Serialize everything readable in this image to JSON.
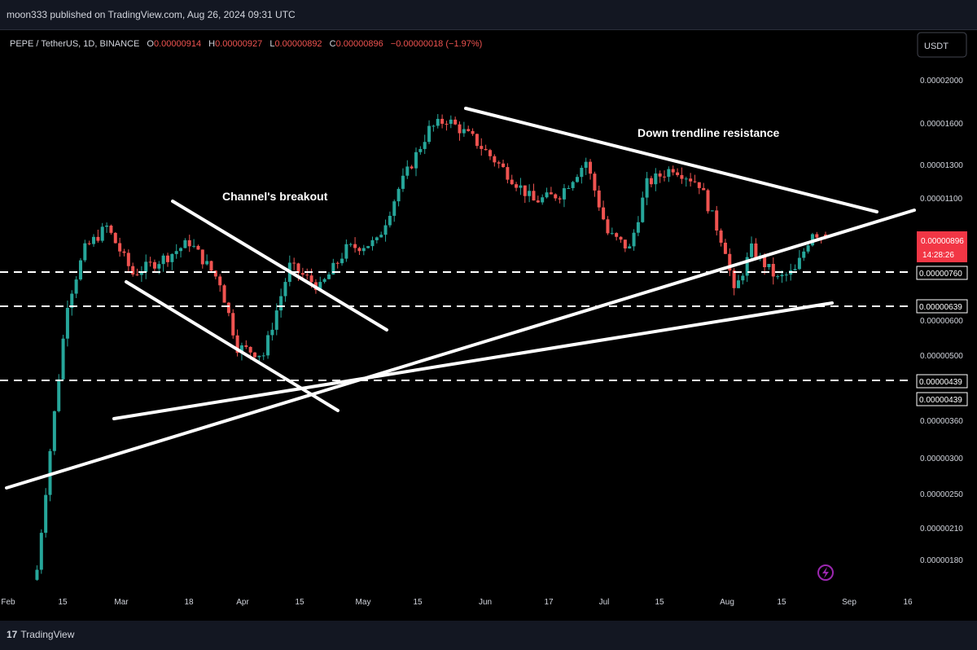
{
  "header": {
    "publish_text": "moon333 published on TradingView.com, Aug 26, 2024 09:31 UTC"
  },
  "legend": {
    "symbol": "PEPE / TetherUS, 1D, BINANCE",
    "open_label": "O",
    "open": "0.00000914",
    "high_label": "H",
    "high": "0.00000927",
    "low_label": "L",
    "low": "0.00000892",
    "close_label": "C",
    "close": "0.00000896",
    "change": "−0.00000018 (−1.97%)"
  },
  "currency_button": "USDT",
  "price_labels": [
    "0.00002000",
    "0.00001600",
    "0.00001300",
    "0.00001100",
    "0.00000600",
    "0.00000500",
    "0.00000360",
    "0.00000300",
    "0.00000250",
    "0.00000210",
    "0.00000180"
  ],
  "level_labels": [
    "0.00000760",
    "0.00000639",
    "0.00000439",
    "0.00000439"
  ],
  "current_price": {
    "price": "0.00000896",
    "countdown": "14:28:26"
  },
  "date_labels": [
    "Feb",
    "15",
    "Mar",
    "18",
    "Apr",
    "15",
    "May",
    "15",
    "Jun",
    "17",
    "Jul",
    "15",
    "Aug",
    "15",
    "Sep",
    "16"
  ],
  "annotations": [
    "Channel's breakout",
    "Down trendline resistance"
  ],
  "footer": {
    "brand": "TradingView"
  },
  "colors": {
    "up": "#26a69a",
    "down": "#ef5350",
    "background": "#000000",
    "current_price_bg": "#f23645",
    "lines": "#ffffff"
  },
  "chart_data": {
    "type": "candlestick",
    "title": "PEPE / TetherUS, 1D, BINANCE",
    "scale": "log",
    "ylim": [
      1.6e-06,
      2.5e-06
    ],
    "xlabel": "",
    "ylabel": "",
    "date_range": [
      "2024-02-20",
      "2024-08-26"
    ],
    "last_ohlc": {
      "open": 9.14e-06,
      "high": 9.27e-06,
      "low": 8.92e-06,
      "close": 8.96e-06
    },
    "horizontal_levels": [
      7.6e-06,
      6.39e-06,
      4.39e-06
    ],
    "close_path": [
      {
        "date": "2024-02-27",
        "close": 1.7e-06
      },
      {
        "date": "2024-03-01",
        "close": 3.1e-06
      },
      {
        "date": "2024-03-05",
        "close": 6.5e-06
      },
      {
        "date": "2024-03-09",
        "close": 8.5e-06
      },
      {
        "date": "2024-03-14",
        "close": 9.5e-06
      },
      {
        "date": "2024-03-20",
        "close": 7.5e-06
      },
      {
        "date": "2024-03-28",
        "close": 8.2e-06
      },
      {
        "date": "2024-04-02",
        "close": 8.8e-06
      },
      {
        "date": "2024-04-09",
        "close": 7.2e-06
      },
      {
        "date": "2024-04-13",
        "close": 5.2e-06
      },
      {
        "date": "2024-04-19",
        "close": 5e-06
      },
      {
        "date": "2024-04-25",
        "close": 7.8e-06
      },
      {
        "date": "2024-05-02",
        "close": 7e-06
      },
      {
        "date": "2024-05-08",
        "close": 8.5e-06
      },
      {
        "date": "2024-05-15",
        "close": 8.8e-06
      },
      {
        "date": "2024-05-20",
        "close": 1.15e-05
      },
      {
        "date": "2024-05-27",
        "close": 1.55e-05
      },
      {
        "date": "2024-05-31",
        "close": 1.63e-05
      },
      {
        "date": "2024-06-06",
        "close": 1.48e-05
      },
      {
        "date": "2024-06-12",
        "close": 1.3e-05
      },
      {
        "date": "2024-06-20",
        "close": 1.08e-05
      },
      {
        "date": "2024-06-26",
        "close": 1.12e-05
      },
      {
        "date": "2024-07-02",
        "close": 1.32e-05
      },
      {
        "date": "2024-07-07",
        "close": 9.2e-06
      },
      {
        "date": "2024-07-12",
        "close": 8.5e-06
      },
      {
        "date": "2024-07-16",
        "close": 1.18e-05
      },
      {
        "date": "2024-07-22",
        "close": 1.28e-05
      },
      {
        "date": "2024-07-28",
        "close": 1.18e-05
      },
      {
        "date": "2024-08-03",
        "close": 8.5e-06
      },
      {
        "date": "2024-08-05",
        "close": 6.8e-06
      },
      {
        "date": "2024-08-09",
        "close": 8.5e-06
      },
      {
        "date": "2024-08-15",
        "close": 7.3e-06
      },
      {
        "date": "2024-08-19",
        "close": 7.6e-06
      },
      {
        "date": "2024-08-23",
        "close": 9.3e-06
      },
      {
        "date": "2024-08-26",
        "close": 8.96e-06
      }
    ],
    "trendlines": [
      {
        "from": {
          "date": "2024-02-20",
          "price": 2.6e-06
        },
        "to": {
          "date": "2024-09-07",
          "price": 9.8e-06
        }
      },
      {
        "from": {
          "date": "2024-02-29",
          "price": 3.6e-06
        },
        "to": {
          "date": "2024-08-29",
          "price": 6.7e-06
        }
      },
      {
        "from": {
          "date": "2024-03-03",
          "price": 7.4e-06
        },
        "to": {
          "date": "2024-04-23",
          "price": 3.8e-06
        }
      },
      {
        "from": {
          "date": "2024-03-15",
          "price": 1.04e-05
        },
        "to": {
          "date": "2024-05-03",
          "price": 5.9e-06
        }
      },
      {
        "from": {
          "date": "2024-05-30",
          "price": 1.7e-05
        },
        "to": {
          "date": "2024-09-05",
          "price": 1e-05
        }
      }
    ]
  }
}
